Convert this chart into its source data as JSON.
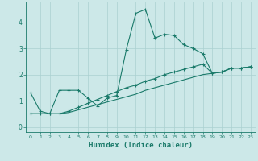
{
  "xlabel": "Humidex (Indice chaleur)",
  "bg_color": "#cce8e8",
  "line_color": "#1a7a6a",
  "grid_color": "#aad0d0",
  "x_values": [
    0,
    1,
    2,
    3,
    4,
    5,
    6,
    7,
    8,
    9,
    10,
    11,
    12,
    13,
    14,
    15,
    16,
    17,
    18,
    19,
    20,
    21,
    22,
    23
  ],
  "line1": [
    1.3,
    0.6,
    0.5,
    1.4,
    1.4,
    1.4,
    1.1,
    0.8,
    1.1,
    1.2,
    2.95,
    4.35,
    4.5,
    3.4,
    3.55,
    3.5,
    3.15,
    3.0,
    2.8,
    2.05,
    2.1,
    2.25,
    2.25,
    2.3
  ],
  "line2": [
    0.5,
    0.5,
    0.5,
    0.5,
    0.6,
    0.75,
    0.9,
    1.05,
    1.2,
    1.35,
    1.5,
    1.6,
    1.75,
    1.85,
    2.0,
    2.1,
    2.2,
    2.3,
    2.4,
    2.05,
    2.1,
    2.25,
    2.25,
    2.3
  ],
  "line3": [
    0.5,
    0.5,
    0.5,
    0.5,
    0.55,
    0.65,
    0.75,
    0.85,
    0.95,
    1.05,
    1.15,
    1.25,
    1.4,
    1.5,
    1.6,
    1.7,
    1.8,
    1.9,
    2.0,
    2.05,
    2.1,
    2.25,
    2.25,
    2.3
  ],
  "xlim": [
    -0.5,
    23.5
  ],
  "ylim": [
    -0.2,
    4.8
  ],
  "yticks": [
    0,
    1,
    2,
    3,
    4
  ],
  "xticks": [
    0,
    1,
    2,
    3,
    4,
    5,
    6,
    7,
    8,
    9,
    10,
    11,
    12,
    13,
    14,
    15,
    16,
    17,
    18,
    19,
    20,
    21,
    22,
    23
  ]
}
